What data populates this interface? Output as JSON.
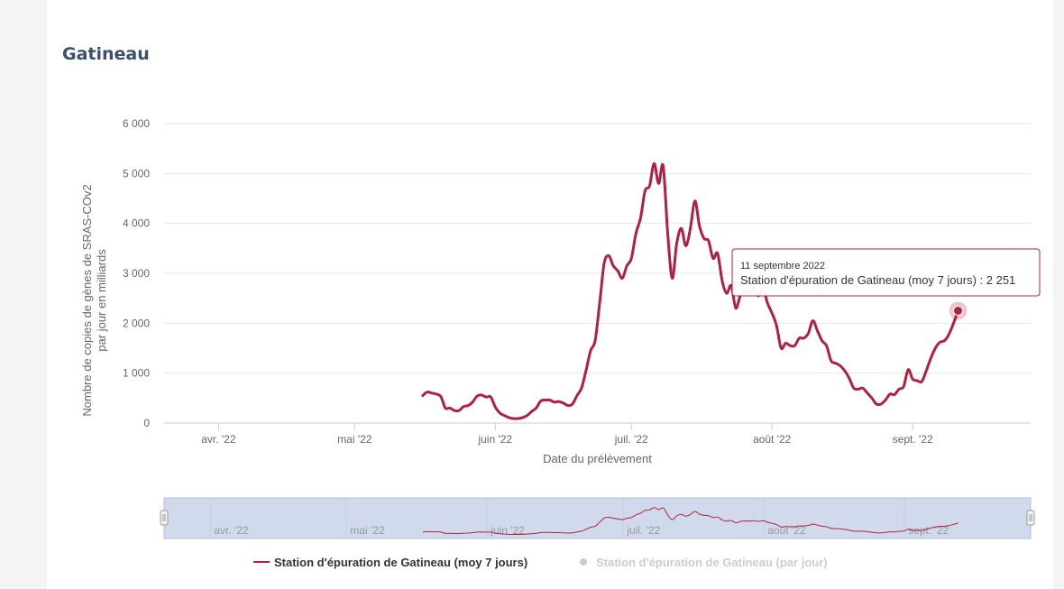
{
  "page": {
    "title": "Gatineau"
  },
  "colors": {
    "series": "#b0213f",
    "grid": "#e6e6e6",
    "navigator_mask": "rgba(102,133,194,0.3)",
    "legend_hidden": "#cccccc"
  },
  "chart_data": {
    "type": "line",
    "title": "Gatineau",
    "xlabel": "Date du prélèvement",
    "ylabel_line1": "Nombre de copies de gènes de SRAS-COv2",
    "ylabel_line2": "par jour en milliards",
    "ylim": [
      0,
      6000
    ],
    "xlim": [
      "2022-03-20",
      "2022-09-27"
    ],
    "y_ticks": [
      {
        "value": 0,
        "label": "0"
      },
      {
        "value": 1000,
        "label": "1 000"
      },
      {
        "value": 2000,
        "label": "2 000"
      },
      {
        "value": 3000,
        "label": "3 000"
      },
      {
        "value": 4000,
        "label": "4 000"
      },
      {
        "value": 5000,
        "label": "5 000"
      },
      {
        "value": 6000,
        "label": "6 000"
      }
    ],
    "x_ticks": [
      {
        "date": "2022-04-01",
        "label": "avr. '22"
      },
      {
        "date": "2022-05-01",
        "label": "mai '22"
      },
      {
        "date": "2022-06-01",
        "label": "juin '22"
      },
      {
        "date": "2022-07-01",
        "label": "juil. '22"
      },
      {
        "date": "2022-08-01",
        "label": "août '22"
      },
      {
        "date": "2022-09-01",
        "label": "sept. '22"
      }
    ],
    "grid": true,
    "legend_position": "bottom",
    "series": [
      {
        "name": "Station d'épuration de Gatineau (moy 7 jours)",
        "visible": true,
        "points": [
          [
            "2022-05-16",
            550
          ],
          [
            "2022-05-17",
            620
          ],
          [
            "2022-05-18",
            600
          ],
          [
            "2022-05-19",
            580
          ],
          [
            "2022-05-20",
            530
          ],
          [
            "2022-05-21",
            300
          ],
          [
            "2022-05-22",
            300
          ],
          [
            "2022-05-23",
            250
          ],
          [
            "2022-05-24",
            250
          ],
          [
            "2022-05-25",
            330
          ],
          [
            "2022-05-26",
            350
          ],
          [
            "2022-05-27",
            420
          ],
          [
            "2022-05-28",
            540
          ],
          [
            "2022-05-29",
            560
          ],
          [
            "2022-05-30",
            520
          ],
          [
            "2022-05-31",
            520
          ],
          [
            "2022-06-01",
            320
          ],
          [
            "2022-06-02",
            200
          ],
          [
            "2022-06-03",
            150
          ],
          [
            "2022-06-04",
            110
          ],
          [
            "2022-06-05",
            90
          ],
          [
            "2022-06-06",
            90
          ],
          [
            "2022-06-07",
            110
          ],
          [
            "2022-06-08",
            150
          ],
          [
            "2022-06-09",
            230
          ],
          [
            "2022-06-10",
            300
          ],
          [
            "2022-06-11",
            440
          ],
          [
            "2022-06-12",
            460
          ],
          [
            "2022-06-13",
            460
          ],
          [
            "2022-06-14",
            420
          ],
          [
            "2022-06-15",
            430
          ],
          [
            "2022-06-16",
            400
          ],
          [
            "2022-06-17",
            350
          ],
          [
            "2022-06-18",
            380
          ],
          [
            "2022-06-19",
            550
          ],
          [
            "2022-06-20",
            700
          ],
          [
            "2022-06-21",
            1050
          ],
          [
            "2022-06-22",
            1450
          ],
          [
            "2022-06-23",
            1650
          ],
          [
            "2022-06-24",
            2400
          ],
          [
            "2022-06-25",
            3200
          ],
          [
            "2022-06-26",
            3350
          ],
          [
            "2022-06-27",
            3150
          ],
          [
            "2022-06-28",
            3050
          ],
          [
            "2022-06-29",
            2900
          ],
          [
            "2022-06-30",
            3150
          ],
          [
            "2022-07-01",
            3300
          ],
          [
            "2022-07-02",
            3800
          ],
          [
            "2022-07-03",
            4100
          ],
          [
            "2022-07-04",
            4650
          ],
          [
            "2022-07-05",
            4750
          ],
          [
            "2022-07-06",
            5200
          ],
          [
            "2022-07-07",
            4800
          ],
          [
            "2022-07-08",
            5150
          ],
          [
            "2022-07-09",
            3800
          ],
          [
            "2022-07-10",
            2900
          ],
          [
            "2022-07-11",
            3600
          ],
          [
            "2022-07-12",
            3900
          ],
          [
            "2022-07-13",
            3550
          ],
          [
            "2022-07-14",
            3900
          ],
          [
            "2022-07-15",
            4450
          ],
          [
            "2022-07-16",
            3950
          ],
          [
            "2022-07-17",
            3700
          ],
          [
            "2022-07-18",
            3650
          ],
          [
            "2022-07-19",
            3300
          ],
          [
            "2022-07-20",
            3400
          ],
          [
            "2022-07-21",
            2850
          ],
          [
            "2022-07-22",
            2600
          ],
          [
            "2022-07-23",
            2750
          ],
          [
            "2022-07-24",
            2300
          ],
          [
            "2022-07-25",
            2550
          ],
          [
            "2022-07-26",
            2650
          ],
          [
            "2022-07-27",
            2600
          ],
          [
            "2022-07-28",
            2700
          ],
          [
            "2022-07-29",
            2550
          ],
          [
            "2022-07-30",
            2700
          ],
          [
            "2022-07-31",
            2400
          ],
          [
            "2022-08-01",
            2200
          ],
          [
            "2022-08-02",
            1950
          ],
          [
            "2022-08-03",
            1500
          ],
          [
            "2022-08-04",
            1600
          ],
          [
            "2022-08-05",
            1550
          ],
          [
            "2022-08-06",
            1550
          ],
          [
            "2022-08-07",
            1700
          ],
          [
            "2022-08-08",
            1700
          ],
          [
            "2022-08-09",
            1800
          ],
          [
            "2022-08-10",
            2050
          ],
          [
            "2022-08-11",
            1850
          ],
          [
            "2022-08-12",
            1650
          ],
          [
            "2022-08-13",
            1550
          ],
          [
            "2022-08-14",
            1250
          ],
          [
            "2022-08-15",
            1200
          ],
          [
            "2022-08-16",
            1150
          ],
          [
            "2022-08-17",
            1050
          ],
          [
            "2022-08-18",
            900
          ],
          [
            "2022-08-19",
            700
          ],
          [
            "2022-08-20",
            680
          ],
          [
            "2022-08-21",
            700
          ],
          [
            "2022-08-22",
            600
          ],
          [
            "2022-08-23",
            500
          ],
          [
            "2022-08-24",
            380
          ],
          [
            "2022-08-25",
            380
          ],
          [
            "2022-08-26",
            460
          ],
          [
            "2022-08-27",
            580
          ],
          [
            "2022-08-28",
            570
          ],
          [
            "2022-08-29",
            680
          ],
          [
            "2022-08-30",
            730
          ],
          [
            "2022-08-31",
            1070
          ],
          [
            "2022-09-01",
            880
          ],
          [
            "2022-09-02",
            850
          ],
          [
            "2022-09-03",
            830
          ],
          [
            "2022-09-04",
            1050
          ],
          [
            "2022-09-05",
            1300
          ],
          [
            "2022-09-06",
            1500
          ],
          [
            "2022-09-07",
            1620
          ],
          [
            "2022-09-08",
            1650
          ],
          [
            "2022-09-09",
            1780
          ],
          [
            "2022-09-10",
            2000
          ],
          [
            "2022-09-11",
            2251
          ]
        ]
      },
      {
        "name": "Station d'épuration de Gatineau (par jour)",
        "visible": false,
        "points": []
      }
    ],
    "tooltip": {
      "date": "11 septembre 2022",
      "text": "Station d'épuration de Gatineau (moy 7 jours) : 2 251",
      "point": [
        "2022-09-11",
        2251
      ]
    },
    "navigator": {
      "labels": [
        "avr. '22",
        "mai '22",
        "juin '22",
        "juil. '22",
        "août '22",
        "sept. '22"
      ]
    }
  }
}
